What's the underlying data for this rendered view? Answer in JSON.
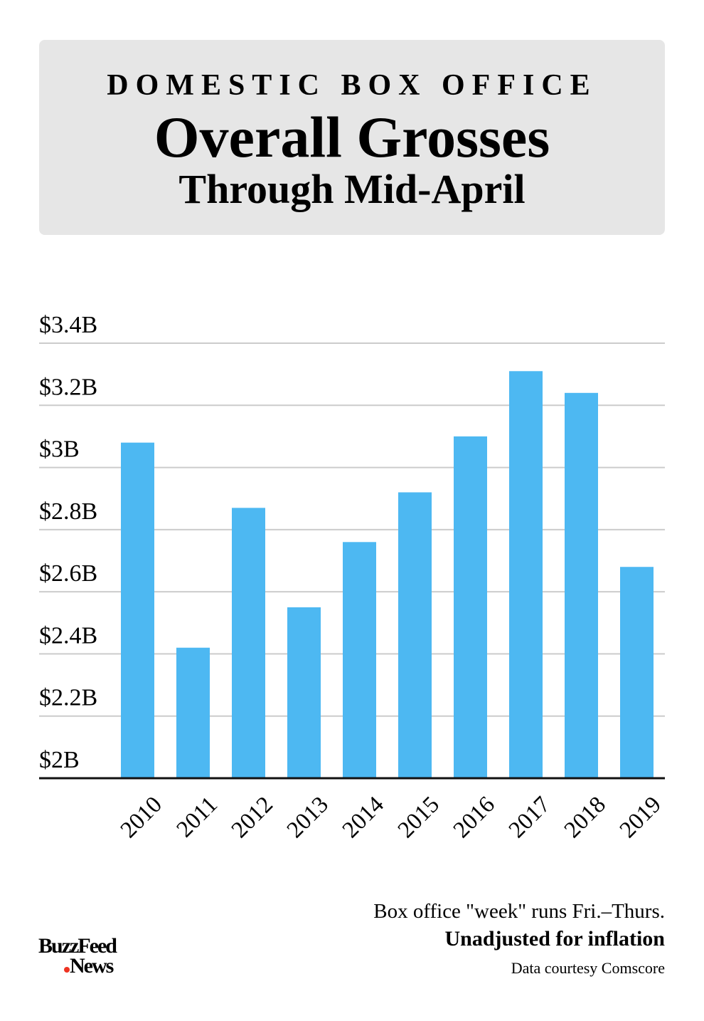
{
  "chart_data": {
    "type": "bar",
    "kicker": "DOMESTIC BOX OFFICE",
    "title": "Overall Grosses",
    "subtitle": "Through Mid-April",
    "categories": [
      "2010",
      "2011",
      "2012",
      "2013",
      "2014",
      "2015",
      "2016",
      "2017",
      "2018",
      "2019"
    ],
    "values": [
      3.08,
      2.42,
      2.87,
      2.55,
      2.76,
      2.92,
      3.1,
      3.31,
      3.24,
      2.68
    ],
    "color": "#4db8f2",
    "ylim": [
      2,
      3.4
    ],
    "yticks": [
      {
        "value": 2,
        "label": "$2B"
      },
      {
        "value": 2.2,
        "label": "$2.2B"
      },
      {
        "value": 2.4,
        "label": "$2.4B"
      },
      {
        "value": 2.6,
        "label": "$2.6B"
      },
      {
        "value": 2.8,
        "label": "$2.8B"
      },
      {
        "value": 3,
        "label": "$3B"
      },
      {
        "value": 3.2,
        "label": "$3.2B"
      },
      {
        "value": 3.4,
        "label": "$3.4B"
      }
    ],
    "grid": true,
    "notes": [
      "Box office \"week\" runs Fri.–Thurs.",
      "Unadjusted for inflation",
      "Data courtesy Comscore"
    ],
    "logo": [
      "BuzzFeed",
      "News"
    ]
  }
}
